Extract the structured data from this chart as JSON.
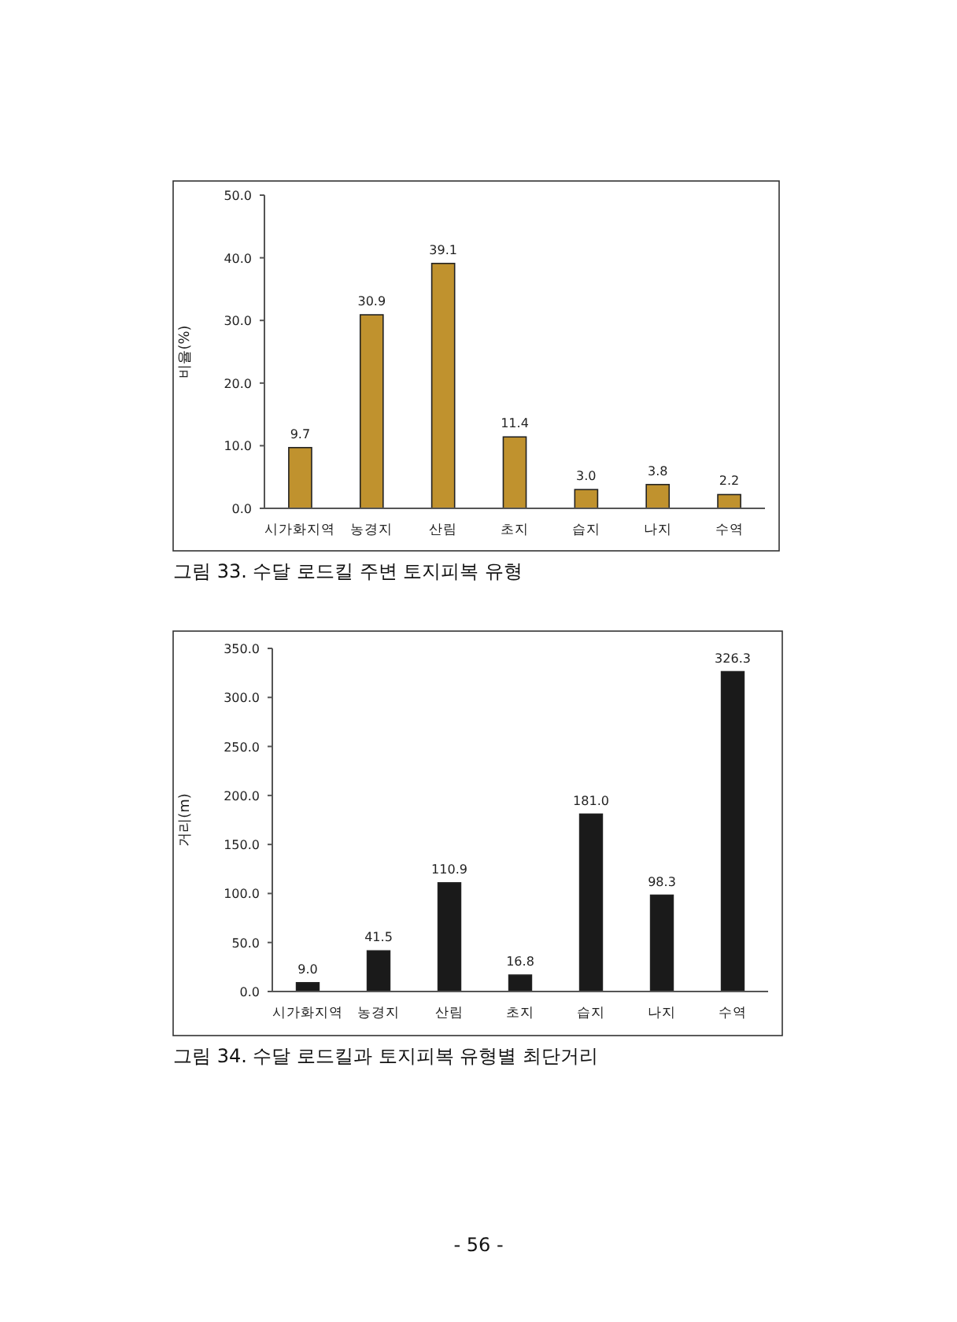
{
  "chart_data": [
    {
      "type": "bar",
      "ylabel": "비율(%)",
      "categories": [
        "시가화지역",
        "농경지",
        "산림",
        "초지",
        "습지",
        "나지",
        "수역"
      ],
      "values": [
        9.7,
        30.9,
        39.1,
        11.4,
        3.0,
        3.8,
        2.2
      ],
      "color": "#c0922e",
      "grid": false,
      "value_labels": [
        "9.7",
        "30.9",
        "39.1",
        "11.4",
        "3.0",
        "3.8",
        "2.2"
      ],
      "ylim": [
        0,
        50
      ],
      "yticks": [
        {
          "value": 0,
          "label": "0.0"
        },
        {
          "value": 10,
          "label": "10.0"
        },
        {
          "value": 20,
          "label": "20.0"
        },
        {
          "value": 30,
          "label": "30.0"
        },
        {
          "value": 40,
          "label": "40.0"
        },
        {
          "value": 50,
          "label": "50.0"
        }
      ],
      "annotations": [
        "그림 33. 수달 로드킬 주변 토지피복 유형"
      ]
    },
    {
      "type": "bar",
      "ylabel": "거리(m)",
      "categories": [
        "시가화지역",
        "농경지",
        "산림",
        "초지",
        "습지",
        "나지",
        "수역"
      ],
      "values": [
        9.0,
        41.5,
        110.9,
        16.8,
        181.0,
        98.3,
        326.3
      ],
      "color": "#1a1a1a",
      "grid": false,
      "value_labels": [
        "9.0",
        "41.5",
        "110.9",
        "16.8",
        "181.0",
        "98.3",
        "326.3"
      ],
      "ylim": [
        0,
        350
      ],
      "yticks": [
        {
          "value": 0,
          "label": "0.0"
        },
        {
          "value": 50,
          "label": "50.0"
        },
        {
          "value": 100,
          "label": "100.0"
        },
        {
          "value": 150,
          "label": "150.0"
        },
        {
          "value": 200,
          "label": "200.0"
        },
        {
          "value": 250,
          "label": "250.0"
        },
        {
          "value": 300,
          "label": "300.0"
        },
        {
          "value": 350,
          "label": "350.0"
        }
      ],
      "annotations": [
        "그림 34. 수달 로드킬과 토지피복 유형별 최단거리",
        "- 56 -"
      ]
    }
  ]
}
